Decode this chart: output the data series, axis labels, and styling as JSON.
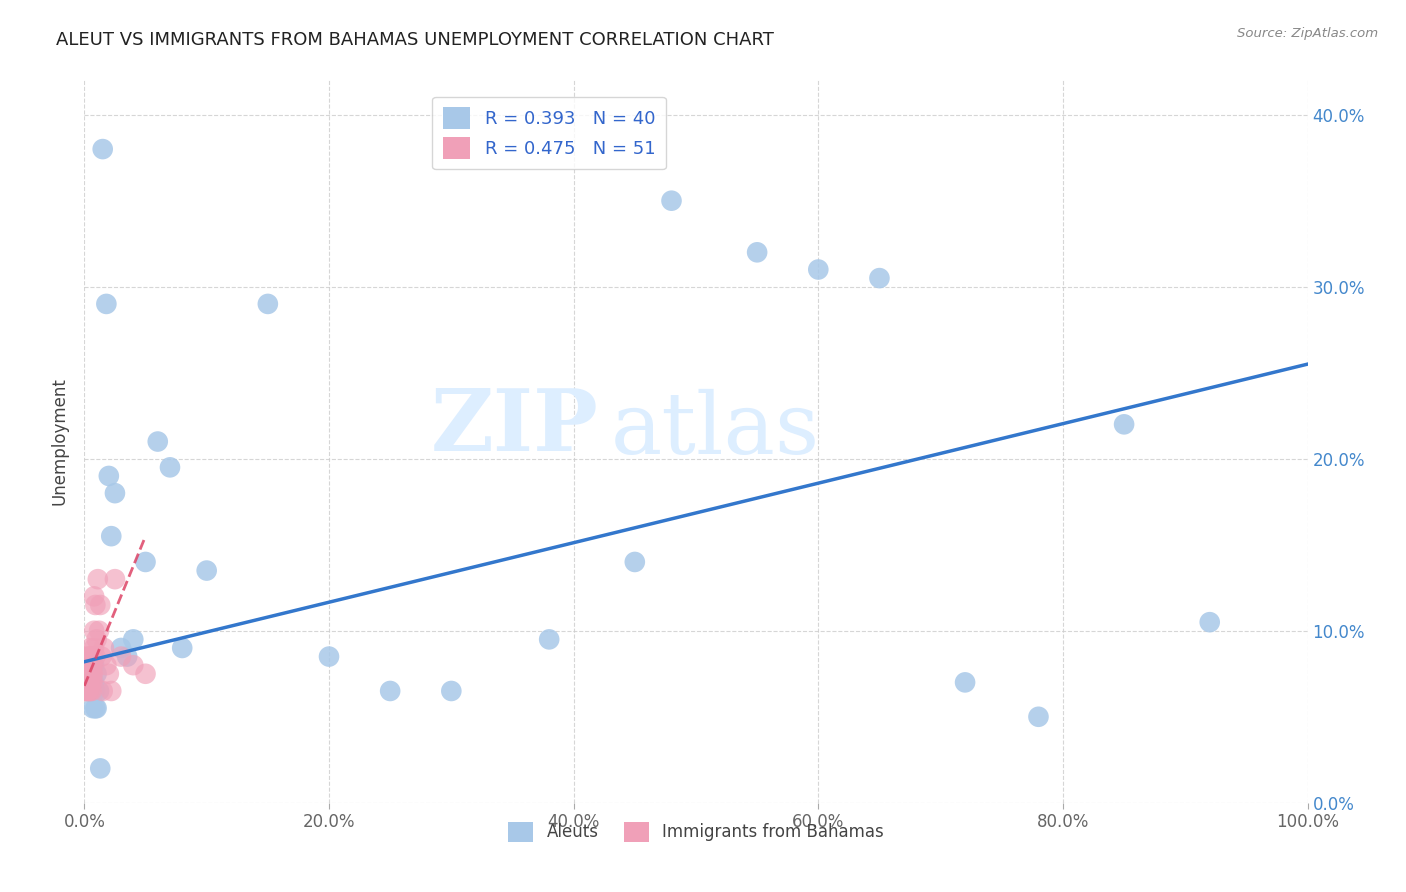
{
  "title": "ALEUT VS IMMIGRANTS FROM BAHAMAS UNEMPLOYMENT CORRELATION CHART",
  "source": "Source: ZipAtlas.com",
  "xlabel_ticks": [
    "0.0%",
    "20.0%",
    "40.0%",
    "60.0%",
    "80.0%",
    "100.0%"
  ],
  "ylabel_ticks": [
    "0.0%",
    "10.0%",
    "20.0%",
    "30.0%",
    "40.0%"
  ],
  "ylabel": "Unemployment",
  "legend_labels": [
    "Aleuts",
    "Immigrants from Bahamas"
  ],
  "aleuts_R": "0.393",
  "aleuts_N": "40",
  "bahamas_R": "0.475",
  "bahamas_N": "51",
  "aleuts_color": "#a8c8e8",
  "bahamas_color": "#f0a0b8",
  "trendline_aleuts_color": "#3377cc",
  "trendline_bahamas_color": "#dd4466",
  "watermark_zip": "ZIP",
  "watermark_atlas": "atlas",
  "background_color": "#ffffff",
  "aleuts_x": [
    0.005,
    0.006,
    0.007,
    0.007,
    0.008,
    0.008,
    0.008,
    0.009,
    0.009,
    0.01,
    0.01,
    0.012,
    0.013,
    0.015,
    0.018,
    0.02,
    0.022,
    0.025,
    0.03,
    0.035,
    0.04,
    0.05,
    0.06,
    0.07,
    0.08,
    0.1,
    0.15,
    0.2,
    0.25,
    0.3,
    0.38,
    0.45,
    0.48,
    0.55,
    0.6,
    0.65,
    0.72,
    0.78,
    0.85,
    0.92
  ],
  "aleuts_y": [
    0.07,
    0.065,
    0.055,
    0.07,
    0.07,
    0.065,
    0.08,
    0.065,
    0.055,
    0.075,
    0.055,
    0.065,
    0.02,
    0.38,
    0.29,
    0.19,
    0.155,
    0.18,
    0.09,
    0.085,
    0.095,
    0.14,
    0.21,
    0.195,
    0.09,
    0.135,
    0.29,
    0.085,
    0.065,
    0.065,
    0.095,
    0.14,
    0.35,
    0.32,
    0.31,
    0.305,
    0.07,
    0.05,
    0.22,
    0.105
  ],
  "bahamas_x": [
    0.001,
    0.001,
    0.001,
    0.001,
    0.002,
    0.002,
    0.002,
    0.002,
    0.003,
    0.003,
    0.003,
    0.003,
    0.003,
    0.004,
    0.004,
    0.004,
    0.004,
    0.004,
    0.005,
    0.005,
    0.005,
    0.005,
    0.005,
    0.005,
    0.006,
    0.006,
    0.006,
    0.006,
    0.007,
    0.007,
    0.007,
    0.007,
    0.008,
    0.008,
    0.008,
    0.009,
    0.009,
    0.01,
    0.011,
    0.012,
    0.013,
    0.014,
    0.015,
    0.016,
    0.018,
    0.02,
    0.022,
    0.025,
    0.03,
    0.04,
    0.05
  ],
  "bahamas_y": [
    0.065,
    0.07,
    0.075,
    0.08,
    0.065,
    0.07,
    0.075,
    0.08,
    0.065,
    0.07,
    0.075,
    0.08,
    0.085,
    0.065,
    0.07,
    0.075,
    0.08,
    0.085,
    0.065,
    0.07,
    0.075,
    0.08,
    0.085,
    0.09,
    0.065,
    0.07,
    0.075,
    0.08,
    0.07,
    0.075,
    0.08,
    0.085,
    0.09,
    0.1,
    0.12,
    0.085,
    0.115,
    0.095,
    0.13,
    0.1,
    0.115,
    0.085,
    0.065,
    0.09,
    0.08,
    0.075,
    0.065,
    0.13,
    0.085,
    0.08,
    0.075
  ],
  "xlim": [
    0.0,
    1.0
  ],
  "ylim": [
    0.0,
    0.42
  ],
  "aleuts_trend_x": [
    0.0,
    1.0
  ],
  "aleuts_trend_y": [
    0.082,
    0.255
  ],
  "bahamas_trend_x": [
    0.0,
    0.05
  ],
  "bahamas_trend_y": [
    0.068,
    0.155
  ]
}
